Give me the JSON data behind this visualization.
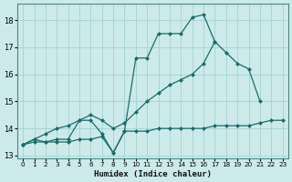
{
  "xlabel": "Humidex (Indice chaleur)",
  "bg_color": "#cdeaea",
  "grid_color": "#a8d5d5",
  "line_color": "#1a6b6b",
  "xlim": [
    -0.5,
    23.5
  ],
  "ylim": [
    12.9,
    18.6
  ],
  "yticks": [
    13,
    14,
    15,
    16,
    17,
    18
  ],
  "xticks": [
    0,
    1,
    2,
    3,
    4,
    5,
    6,
    7,
    8,
    9,
    10,
    11,
    12,
    13,
    14,
    15,
    16,
    17,
    18,
    19,
    20,
    21,
    22,
    23
  ],
  "line1_x": [
    0,
    1,
    2,
    3,
    4,
    5,
    6,
    7,
    8,
    9,
    10,
    11,
    12,
    13,
    14,
    15,
    16,
    17
  ],
  "line1_y": [
    13.4,
    13.6,
    13.5,
    13.6,
    13.6,
    14.3,
    14.3,
    13.8,
    13.1,
    13.9,
    16.6,
    16.6,
    17.5,
    17.5,
    17.5,
    18.1,
    18.2,
    17.2
  ],
  "line2_x": [
    0,
    1,
    2,
    3,
    4,
    5,
    6,
    7,
    8,
    9,
    10,
    11,
    12,
    13,
    14,
    15,
    16,
    17,
    18,
    19,
    20,
    21
  ],
  "line2_y": [
    13.4,
    13.6,
    13.8,
    14.0,
    14.1,
    14.3,
    14.5,
    14.3,
    14.0,
    14.2,
    14.6,
    15.0,
    15.3,
    15.6,
    15.8,
    16.0,
    16.4,
    17.2,
    16.8,
    16.4,
    16.2,
    15.0
  ],
  "line3_x": [
    0,
    1,
    2,
    3,
    4,
    5,
    6,
    7,
    8,
    9,
    10,
    11,
    12,
    13,
    14,
    15,
    16,
    17,
    18,
    19,
    20,
    21,
    22,
    23
  ],
  "line3_y": [
    13.4,
    13.5,
    13.5,
    13.5,
    13.5,
    13.6,
    13.6,
    13.7,
    13.1,
    13.9,
    13.9,
    13.9,
    14.0,
    14.0,
    14.0,
    14.0,
    14.0,
    14.1,
    14.1,
    14.1,
    14.1,
    14.2,
    14.3,
    14.3
  ]
}
